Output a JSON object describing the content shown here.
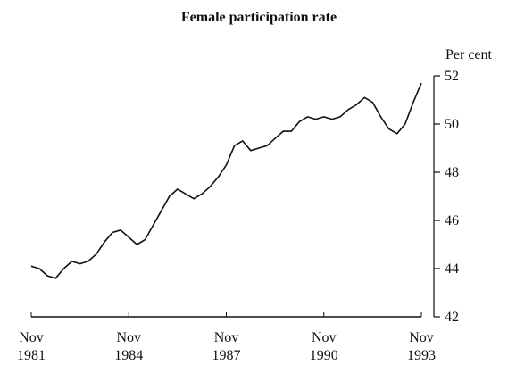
{
  "chart_data": {
    "type": "line",
    "title": "Female participation rate",
    "y_label": "Per cent",
    "x": [
      "1981-11",
      "1982-02",
      "1982-05",
      "1982-08",
      "1982-11",
      "1983-02",
      "1983-05",
      "1983-08",
      "1983-11",
      "1984-02",
      "1984-05",
      "1984-08",
      "1984-11",
      "1985-02",
      "1985-05",
      "1985-08",
      "1985-11",
      "1986-02",
      "1986-05",
      "1986-08",
      "1986-11",
      "1987-02",
      "1987-05",
      "1987-08",
      "1987-11",
      "1988-02",
      "1988-05",
      "1988-08",
      "1988-11",
      "1989-02",
      "1989-05",
      "1989-08",
      "1989-11",
      "1990-02",
      "1990-05",
      "1990-08",
      "1990-11",
      "1991-02",
      "1991-05",
      "1991-08",
      "1991-11",
      "1992-02",
      "1992-05",
      "1992-08",
      "1992-11",
      "1993-02",
      "1993-05",
      "1993-08",
      "1993-11"
    ],
    "series": [
      {
        "name": "Female participation rate",
        "color": "#111111",
        "values": [
          44.1,
          44.0,
          43.7,
          43.6,
          44.0,
          44.3,
          44.2,
          44.3,
          44.6,
          45.1,
          45.5,
          45.6,
          45.3,
          45.0,
          45.2,
          45.8,
          46.4,
          47.0,
          47.3,
          47.1,
          46.9,
          47.1,
          47.4,
          47.8,
          48.3,
          49.1,
          49.3,
          48.9,
          49.0,
          49.1,
          49.4,
          49.7,
          49.7,
          50.1,
          50.3,
          50.2,
          50.3,
          50.2,
          50.3,
          50.6,
          50.8,
          51.1,
          50.9,
          50.3,
          49.8,
          49.6,
          50.0,
          50.9,
          51.7
        ]
      }
    ],
    "xlim": [
      "1981-11",
      "1993-11"
    ],
    "xticks": [
      {
        "value": "1981-11",
        "label": "Nov 1981"
      },
      {
        "value": "1984-11",
        "label": "Nov 1984"
      },
      {
        "value": "1987-11",
        "label": "Nov 1987"
      },
      {
        "value": "1990-11",
        "label": "Nov 1990"
      },
      {
        "value": "1993-11",
        "label": "Nov 1993"
      }
    ],
    "ylim": [
      42,
      52
    ],
    "yticks": [
      42,
      44,
      46,
      48,
      50,
      52
    ],
    "y_axis_side": "right"
  }
}
